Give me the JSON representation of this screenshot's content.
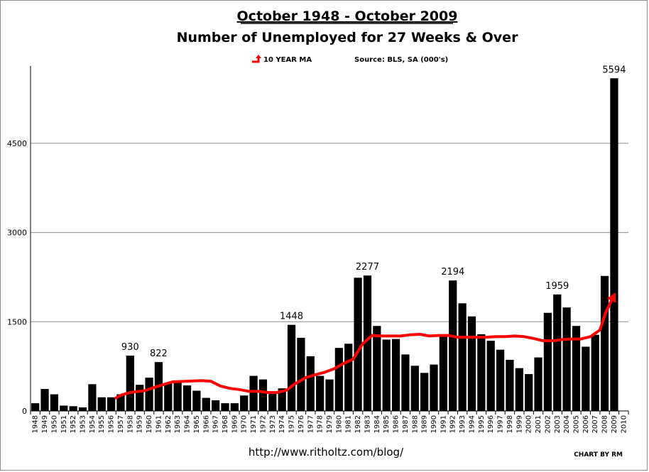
{
  "chart_data": {
    "type": "bar",
    "title": "October  1948 - October  2009",
    "subtitle": "Number  of  Unemployed  for  27  Weeks  &  Over",
    "legend": {
      "label": "10 YEAR MA",
      "color": "#ff0000",
      "placement": "top-center"
    },
    "source": "Source: BLS, SA (000's)",
    "url": "http://www.ritholtz.com/blog/",
    "credit": "CHART BY RM",
    "ylim": [
      0,
      5800
    ],
    "yticks": [
      0,
      1500,
      3000,
      4500
    ],
    "grid": "horizontal",
    "bar_color": "#000000",
    "categories": [
      "1948",
      "1949",
      "1950",
      "1951",
      "1952",
      "1953",
      "1954",
      "1955",
      "1956",
      "1957",
      "1958",
      "1959",
      "1960",
      "1961",
      "1962",
      "1963",
      "1964",
      "1965",
      "1966",
      "1967",
      "1968",
      "1969",
      "1970",
      "1971",
      "1972",
      "1973",
      "1974",
      "1975",
      "1976",
      "1977",
      "1978",
      "1979",
      "1980",
      "1981",
      "1982",
      "1983",
      "1984",
      "1985",
      "1986",
      "1987",
      "1988",
      "1989",
      "1990",
      "1991",
      "1992",
      "1993",
      "1994",
      "1995",
      "1996",
      "1997",
      "1998",
      "1999",
      "2000",
      "2001",
      "2002",
      "2003",
      "2004",
      "2005",
      "2006",
      "2007",
      "2008",
      "2009",
      "2010"
    ],
    "values": [
      130,
      370,
      280,
      90,
      80,
      60,
      450,
      230,
      230,
      280,
      930,
      440,
      560,
      822,
      470,
      500,
      430,
      340,
      220,
      180,
      130,
      130,
      260,
      590,
      530,
      300,
      380,
      1448,
      1230,
      920,
      590,
      530,
      1060,
      1130,
      2240,
      2277,
      1430,
      1200,
      1210,
      950,
      760,
      640,
      780,
      1280,
      2194,
      1810,
      1590,
      1290,
      1180,
      1030,
      860,
      720,
      620,
      900,
      1650,
      1959,
      1740,
      1430,
      1080,
      1280,
      2270,
      5594,
      null
    ],
    "annotations": [
      {
        "category": "1958",
        "label": "930"
      },
      {
        "category": "1961",
        "label": "822"
      },
      {
        "category": "1975",
        "label": "1448"
      },
      {
        "category": "1983",
        "label": "2277"
      },
      {
        "category": "1992",
        "label": "2194"
      },
      {
        "category": "2003",
        "label": "1959"
      },
      {
        "category": "2009",
        "label": "5594"
      }
    ],
    "moving_average": {
      "name": "10 YEAR MA",
      "color": "#ff0000",
      "points": [
        {
          "x": 9.0,
          "y": 220
        },
        {
          "x": 9.6,
          "y": 270
        },
        {
          "x": 10.5,
          "y": 310
        },
        {
          "x": 12.0,
          "y": 340
        },
        {
          "x": 13.5,
          "y": 420
        },
        {
          "x": 15.0,
          "y": 490
        },
        {
          "x": 16.5,
          "y": 500
        },
        {
          "x": 18.0,
          "y": 510
        },
        {
          "x": 19.0,
          "y": 500
        },
        {
          "x": 20.0,
          "y": 420
        },
        {
          "x": 21.0,
          "y": 380
        },
        {
          "x": 22.0,
          "y": 360
        },
        {
          "x": 23.0,
          "y": 330
        },
        {
          "x": 24.0,
          "y": 330
        },
        {
          "x": 25.0,
          "y": 310
        },
        {
          "x": 26.0,
          "y": 310
        },
        {
          "x": 27.0,
          "y": 350
        },
        {
          "x": 27.8,
          "y": 450
        },
        {
          "x": 29.0,
          "y": 560
        },
        {
          "x": 30.0,
          "y": 610
        },
        {
          "x": 31.0,
          "y": 650
        },
        {
          "x": 32.0,
          "y": 710
        },
        {
          "x": 33.0,
          "y": 800
        },
        {
          "x": 34.0,
          "y": 870
        },
        {
          "x": 35.0,
          "y": 1130
        },
        {
          "x": 36.0,
          "y": 1270
        },
        {
          "x": 37.0,
          "y": 1260
        },
        {
          "x": 38.0,
          "y": 1260
        },
        {
          "x": 39.0,
          "y": 1260
        },
        {
          "x": 40.0,
          "y": 1280
        },
        {
          "x": 41.0,
          "y": 1290
        },
        {
          "x": 42.0,
          "y": 1260
        },
        {
          "x": 43.0,
          "y": 1270
        },
        {
          "x": 44.0,
          "y": 1270
        },
        {
          "x": 45.0,
          "y": 1240
        },
        {
          "x": 46.0,
          "y": 1240
        },
        {
          "x": 47.0,
          "y": 1240
        },
        {
          "x": 48.0,
          "y": 1240
        },
        {
          "x": 49.0,
          "y": 1250
        },
        {
          "x": 50.0,
          "y": 1250
        },
        {
          "x": 51.0,
          "y": 1260
        },
        {
          "x": 52.0,
          "y": 1250
        },
        {
          "x": 53.0,
          "y": 1220
        },
        {
          "x": 54.0,
          "y": 1180
        },
        {
          "x": 55.0,
          "y": 1180
        },
        {
          "x": 56.0,
          "y": 1200
        },
        {
          "x": 57.0,
          "y": 1210
        },
        {
          "x": 58.0,
          "y": 1210
        },
        {
          "x": 59.0,
          "y": 1250
        },
        {
          "x": 60.0,
          "y": 1360
        },
        {
          "x": 60.6,
          "y": 1650
        },
        {
          "x": 61.5,
          "y": 1950
        }
      ]
    }
  }
}
